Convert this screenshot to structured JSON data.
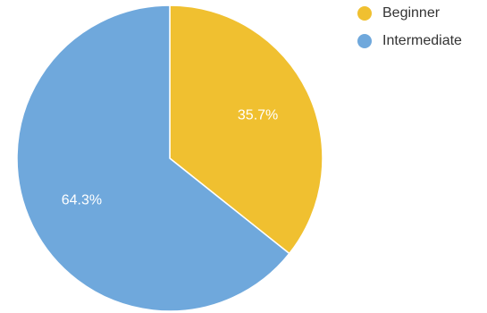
{
  "chart_data": {
    "type": "pie",
    "categories": [
      "Beginner",
      "Intermediate"
    ],
    "values": [
      35.7,
      64.3
    ],
    "value_labels": [
      "35.7%",
      "64.3%"
    ],
    "colors": [
      "#F0C030",
      "#6FA8DC"
    ],
    "start_angle_deg": 0,
    "direction": "clockwise",
    "legend": "top-right",
    "legend_entries": [
      {
        "label": "Beginner",
        "color": "#F0C030"
      },
      {
        "label": "Intermediate",
        "color": "#6FA8DC"
      }
    ]
  }
}
